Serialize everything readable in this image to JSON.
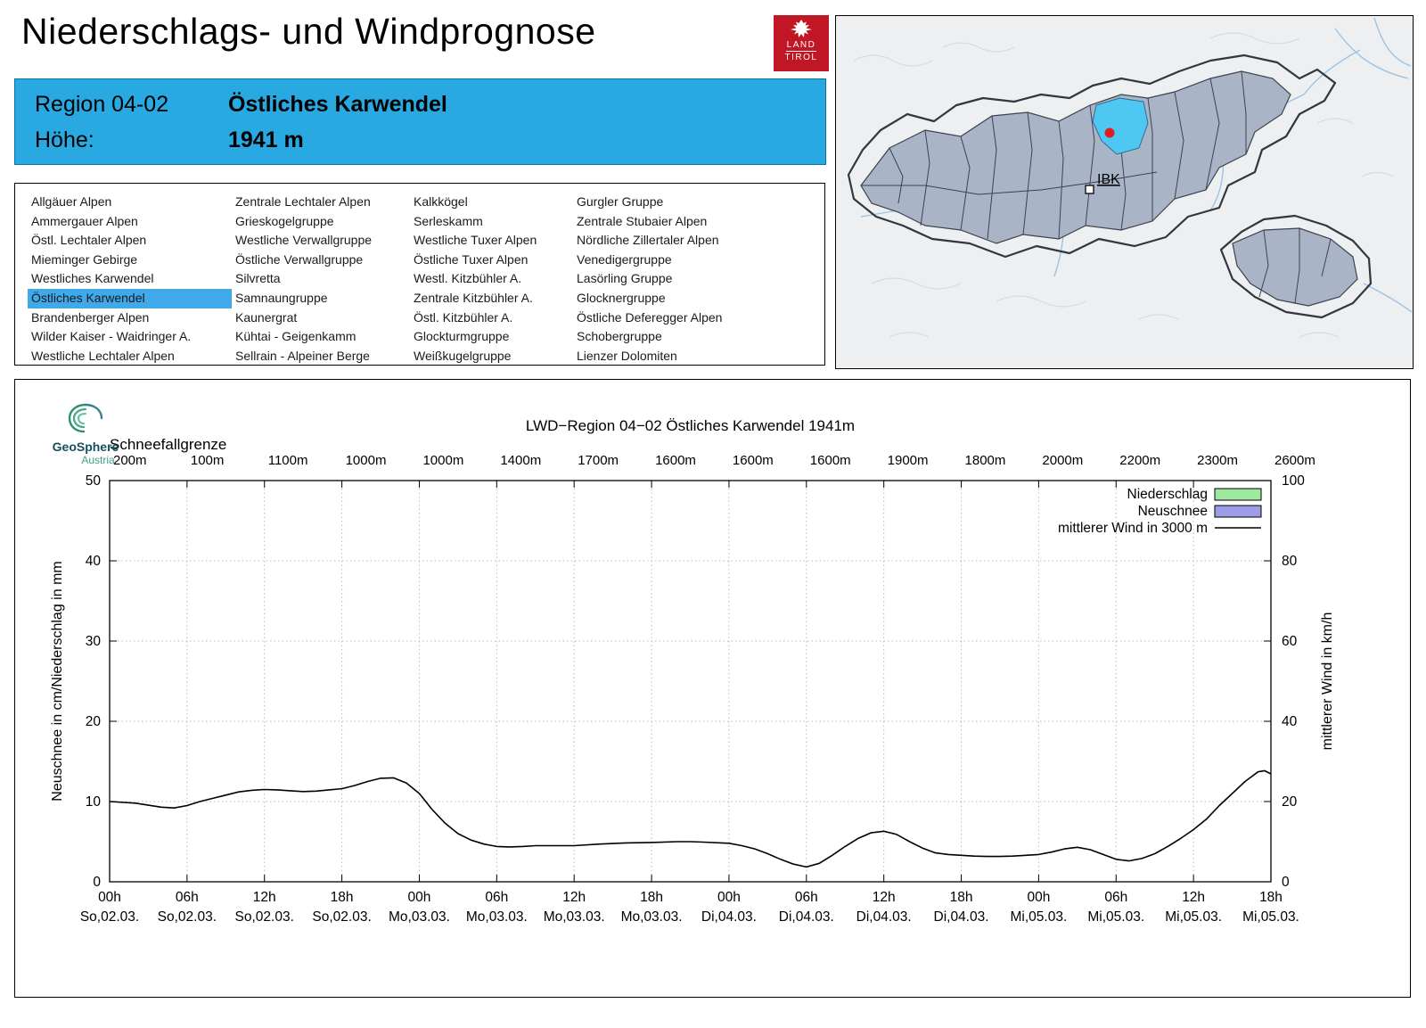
{
  "page": {
    "title": "Niederschlags- und Windprognose"
  },
  "logo": {
    "line1": "LAND",
    "line2": "TIROL"
  },
  "region_header": {
    "region_label": "Region 04-02",
    "region_name": "Östliches Karwendel",
    "altitude_label": "Höhe:",
    "altitude_value": "1941 m"
  },
  "region_list": {
    "selected": "Östliches Karwendel",
    "columns": [
      [
        "Allgäuer Alpen",
        "Ammergauer Alpen",
        "Östl. Lechtaler Alpen",
        "Mieminger Gebirge",
        "Westliches Karwendel",
        "Östliches Karwendel",
        "Brandenberger Alpen",
        "Wilder Kaiser - Waidringer A.",
        "Westliche Lechtaler Alpen"
      ],
      [
        "Zentrale Lechtaler Alpen",
        "Grieskogelgruppe",
        "Westliche Verwallgruppe",
        "Östliche Verwallgruppe",
        "Silvretta",
        "Samnaungruppe",
        "Kaunergrat",
        "Kühtai - Geigenkamm",
        "Sellrain - Alpeiner Berge"
      ],
      [
        "Kalkkögel",
        "Serleskamm",
        "Westliche Tuxer Alpen",
        "Östliche Tuxer Alpen",
        "Westl. Kitzbühler A.",
        "Zentrale Kitzbühler A.",
        "Östl. Kitzbühler A.",
        "Glockturmgruppe",
        "Weißkugelgruppe"
      ],
      [
        "Gurgler Gruppe",
        "Zentrale Stubaier Alpen",
        "Nördliche Zillertaler Alpen",
        "Venedigergruppe",
        "Lasörling Gruppe",
        "Glocknergruppe",
        "Östliche Deferegger Alpen",
        "Schobergruppe",
        "Lienzer Dolomiten"
      ]
    ]
  },
  "map": {
    "city_label": "IBK"
  },
  "geosphere": {
    "name": "GeoSphere",
    "country": "Austria"
  },
  "colors": {
    "header_blue": "#29a9e2",
    "highlight_blue": "#3fa9e9",
    "map_region_fill": "#a9b5c7",
    "map_selected_region": "#4ec7f2",
    "marker_red": "#dd1f1f",
    "precip_green": "#9fe89f",
    "snow_violet": "#9c9ce8",
    "wind_black": "#000000"
  },
  "chart": {
    "title": "LWD−Region 04−02 Östliches Karwendel 1941m",
    "snowline_label": "Schneefallgrenze",
    "y_left_label": "Neuschnee in cm/Niederschlag in mm",
    "y_right_label": "mittlerer Wind in km/h",
    "legend": [
      {
        "label": "Niederschlag",
        "swatch": "box",
        "color": "#9fe89f"
      },
      {
        "label": "Neuschnee",
        "swatch": "box",
        "color": "#9c9ce8"
      },
      {
        "label": "mittlerer Wind in 3000 m",
        "swatch": "line",
        "color": "#000000"
      }
    ]
  },
  "chart_data": {
    "type": "line",
    "title": "LWD−Region 04−02 Östliches Karwendel 1941m",
    "x_unit": "hours since So 02.03. 00h",
    "x_range": [
      0,
      90
    ],
    "x_tick_step_hours": 6,
    "x_ticks_time": [
      "00h",
      "06h",
      "12h",
      "18h",
      "00h",
      "06h",
      "12h",
      "18h",
      "00h",
      "06h",
      "12h",
      "18h",
      "00h",
      "06h",
      "12h",
      "18h"
    ],
    "x_ticks_date": [
      "So,02.03.",
      "So,02.03.",
      "So,02.03.",
      "So,02.03.",
      "Mo,03.03.",
      "Mo,03.03.",
      "Mo,03.03.",
      "Mo,03.03.",
      "Di,04.03.",
      "Di,04.03.",
      "Di,04.03.",
      "Di,04.03.",
      "Mi,05.03.",
      "Mi,05.03.",
      "Mi,05.03.",
      "Mi,05.03."
    ],
    "ylabel_left": "Neuschnee in cm/Niederschlag in mm",
    "ylim_left": [
      0,
      50
    ],
    "y_left_ticks": [
      0,
      10,
      20,
      30,
      40,
      50
    ],
    "ylabel_right": "mittlerer Wind in km/h",
    "ylim_right": [
      0,
      100
    ],
    "y_right_ticks": [
      0,
      20,
      40,
      60,
      80,
      100
    ],
    "grid": true,
    "legend_position": "top-right-inside",
    "snowline_label": "Schneefallgrenze",
    "snowline_m": [
      200,
      100,
      1100,
      1000,
      1000,
      1400,
      1700,
      1600,
      1600,
      1600,
      1900,
      1800,
      2000,
      2200,
      2300,
      2600
    ],
    "series": [
      {
        "name": "Niederschlag",
        "unit": "mm",
        "axis": "left",
        "type": "bar",
        "points": []
      },
      {
        "name": "Neuschnee",
        "unit": "cm",
        "axis": "left",
        "type": "bar",
        "points": []
      },
      {
        "name": "mittlerer Wind in 3000 m",
        "unit": "km/h",
        "axis": "right",
        "type": "line",
        "points": [
          [
            0,
            20
          ],
          [
            2,
            19.6
          ],
          [
            4,
            18.6
          ],
          [
            5,
            18.4
          ],
          [
            6,
            19
          ],
          [
            7,
            20
          ],
          [
            8,
            20.8
          ],
          [
            9,
            21.6
          ],
          [
            10,
            22.4
          ],
          [
            11,
            22.8
          ],
          [
            12,
            23
          ],
          [
            13,
            22.9
          ],
          [
            14,
            22.7
          ],
          [
            15,
            22.5
          ],
          [
            16,
            22.6
          ],
          [
            17,
            22.9
          ],
          [
            18,
            23.2
          ],
          [
            19,
            24
          ],
          [
            20,
            25
          ],
          [
            21,
            25.8
          ],
          [
            22,
            25.9
          ],
          [
            23,
            24.6
          ],
          [
            24,
            22
          ],
          [
            25,
            18
          ],
          [
            26,
            14.6
          ],
          [
            27,
            12
          ],
          [
            28,
            10.4
          ],
          [
            29,
            9.4
          ],
          [
            30,
            8.8
          ],
          [
            31,
            8.7
          ],
          [
            32,
            8.8
          ],
          [
            33,
            9
          ],
          [
            34,
            9
          ],
          [
            35,
            9
          ],
          [
            36,
            9
          ],
          [
            38,
            9.4
          ],
          [
            40,
            9.7
          ],
          [
            42,
            9.8
          ],
          [
            44,
            10
          ],
          [
            45,
            10
          ],
          [
            46,
            9.9
          ],
          [
            48,
            9.6
          ],
          [
            49,
            9
          ],
          [
            50,
            8.2
          ],
          [
            51,
            7
          ],
          [
            52,
            5.6
          ],
          [
            53,
            4.4
          ],
          [
            54,
            3.7
          ],
          [
            55,
            4.6
          ],
          [
            56,
            6.6
          ],
          [
            57,
            8.8
          ],
          [
            58,
            10.8
          ],
          [
            59,
            12.2
          ],
          [
            60,
            12.6
          ],
          [
            61,
            11.8
          ],
          [
            62,
            10
          ],
          [
            63,
            8.4
          ],
          [
            64,
            7.2
          ],
          [
            65,
            6.8
          ],
          [
            66,
            6.6
          ],
          [
            67,
            6.4
          ],
          [
            68,
            6.3
          ],
          [
            69,
            6.3
          ],
          [
            70,
            6.4
          ],
          [
            71,
            6.6
          ],
          [
            72,
            6.8
          ],
          [
            73,
            7.4
          ],
          [
            74,
            8.2
          ],
          [
            75,
            8.6
          ],
          [
            76,
            8
          ],
          [
            77,
            6.8
          ],
          [
            78,
            5.6
          ],
          [
            79,
            5.2
          ],
          [
            80,
            5.8
          ],
          [
            81,
            7
          ],
          [
            82,
            8.8
          ],
          [
            83,
            10.8
          ],
          [
            84,
            13
          ],
          [
            85,
            15.6
          ],
          [
            86,
            19
          ],
          [
            87,
            22
          ],
          [
            88,
            25
          ],
          [
            89,
            27.4
          ],
          [
            89.5,
            27.7
          ],
          [
            90,
            26.9
          ]
        ]
      }
    ]
  }
}
